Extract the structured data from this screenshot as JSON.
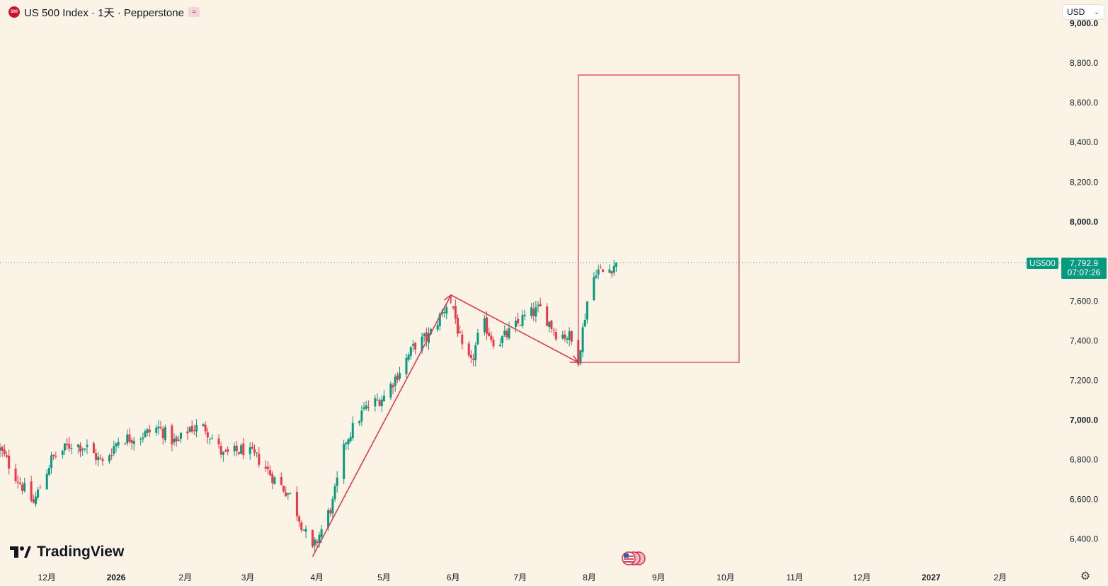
{
  "header": {
    "title": "US 500 Index · 1天 · Pepperstone",
    "logo_text": "500",
    "indicator_icon": "wave-icon"
  },
  "currency": {
    "label": "USD"
  },
  "price": {
    "symbol": "US500",
    "last": "7,792.9",
    "countdown": "07:07:26",
    "value": 7792.9,
    "color": "#089981"
  },
  "branding": {
    "name": "TradingView"
  },
  "colors": {
    "up": "#089981",
    "down": "#f23645",
    "drawing": "#e03a52",
    "background": "#faf3e6"
  },
  "chart_data": {
    "type": "candlestick",
    "y_axis": {
      "range": [
        6262,
        9090
      ],
      "ticks": [
        {
          "value": 9000,
          "label": "9,000.0",
          "bold": true
        },
        {
          "value": 8800,
          "label": "8,800.0",
          "bold": false
        },
        {
          "value": 8600,
          "label": "8,600.0",
          "bold": false
        },
        {
          "value": 8400,
          "label": "8,400.0",
          "bold": false
        },
        {
          "value": 8200,
          "label": "8,200.0",
          "bold": false
        },
        {
          "value": 8000,
          "label": "8,000.0",
          "bold": true
        },
        {
          "value": 7600,
          "label": "7,600.0",
          "bold": false
        },
        {
          "value": 7400,
          "label": "7,400.0",
          "bold": false
        },
        {
          "value": 7200,
          "label": "7,200.0",
          "bold": false
        },
        {
          "value": 7000,
          "label": "7,000.0",
          "bold": true
        },
        {
          "value": 6800,
          "label": "6,800.0",
          "bold": false
        },
        {
          "value": 6600,
          "label": "6,600.0",
          "bold": false
        },
        {
          "value": 6400,
          "label": "6,400.0",
          "bold": false
        }
      ]
    },
    "x_axis": {
      "range": [
        "2025-11-10",
        "2027-02-28"
      ],
      "ticks": [
        {
          "date": "2025-12-01",
          "label": "12月",
          "bold": false
        },
        {
          "date": "2026-01-01",
          "label": "2026",
          "bold": true
        },
        {
          "date": "2026-02-01",
          "label": "2月",
          "bold": false
        },
        {
          "date": "2026-03-01",
          "label": "3月",
          "bold": false
        },
        {
          "date": "2026-04-01",
          "label": "4月",
          "bold": false
        },
        {
          "date": "2026-05-01",
          "label": "5月",
          "bold": false
        },
        {
          "date": "2026-06-01",
          "label": "6月",
          "bold": false
        },
        {
          "date": "2026-07-01",
          "label": "7月",
          "bold": false
        },
        {
          "date": "2026-08-01",
          "label": "8月",
          "bold": false
        },
        {
          "date": "2026-09-01",
          "label": "9月",
          "bold": false
        },
        {
          "date": "2026-10-01",
          "label": "10月",
          "bold": false
        },
        {
          "date": "2026-11-01",
          "label": "11月",
          "bold": false
        },
        {
          "date": "2026-12-01",
          "label": "12月",
          "bold": false
        },
        {
          "date": "2027-01-01",
          "label": "2027",
          "bold": true
        },
        {
          "date": "2027-02-01",
          "label": "2月",
          "bold": false
        }
      ]
    },
    "series": [
      {
        "name": "US500",
        "close_path": [
          [
            "2025-11-10",
            6850
          ],
          [
            "2025-11-18",
            6700
          ],
          [
            "2025-11-25",
            6580
          ],
          [
            "2025-12-03",
            6800
          ],
          [
            "2025-12-12",
            6880
          ],
          [
            "2025-12-19",
            6860
          ],
          [
            "2025-12-26",
            6780
          ],
          [
            "2026-01-02",
            6900
          ],
          [
            "2026-01-12",
            6920
          ],
          [
            "2026-01-20",
            6960
          ],
          [
            "2026-01-28",
            6880
          ],
          [
            "2026-02-03",
            6960
          ],
          [
            "2026-02-10",
            6960
          ],
          [
            "2026-02-18",
            6820
          ],
          [
            "2026-02-27",
            6850
          ],
          [
            "2026-03-06",
            6800
          ],
          [
            "2026-03-13",
            6700
          ],
          [
            "2026-03-20",
            6620
          ],
          [
            "2026-03-26",
            6450
          ],
          [
            "2026-03-30",
            6340
          ],
          [
            "2026-04-08",
            6580
          ],
          [
            "2026-04-14",
            6900
          ],
          [
            "2026-04-22",
            7050
          ],
          [
            "2026-05-01",
            7120
          ],
          [
            "2026-05-08",
            7250
          ],
          [
            "2026-05-15",
            7380
          ],
          [
            "2026-05-21",
            7420
          ],
          [
            "2026-05-31",
            7620
          ],
          [
            "2026-06-05",
            7350
          ],
          [
            "2026-06-09",
            7280
          ],
          [
            "2026-06-14",
            7500
          ],
          [
            "2026-06-20",
            7380
          ],
          [
            "2026-06-27",
            7450
          ],
          [
            "2026-07-03",
            7520
          ],
          [
            "2026-07-10",
            7560
          ],
          [
            "2026-07-17",
            7440
          ],
          [
            "2026-07-23",
            7420
          ],
          [
            "2026-07-27",
            7310
          ],
          [
            "2026-07-31",
            7600
          ],
          [
            "2026-08-04",
            7760
          ],
          [
            "2026-08-08",
            7740
          ],
          [
            "2026-08-13",
            7792.9
          ]
        ]
      }
    ],
    "drawings": [
      {
        "type": "arrow",
        "from": [
          "2026-03-30",
          6310
        ],
        "to": [
          "2026-05-31",
          7630
        ]
      },
      {
        "type": "arrow",
        "from": [
          "2026-05-31",
          7630
        ],
        "to": [
          "2026-07-27",
          7290
        ]
      },
      {
        "type": "rectangle",
        "from": [
          "2026-07-27",
          8740
        ],
        "to": [
          "2026-10-07",
          7290
        ]
      }
    ],
    "current_price_line": 7792.9,
    "grid": false
  }
}
